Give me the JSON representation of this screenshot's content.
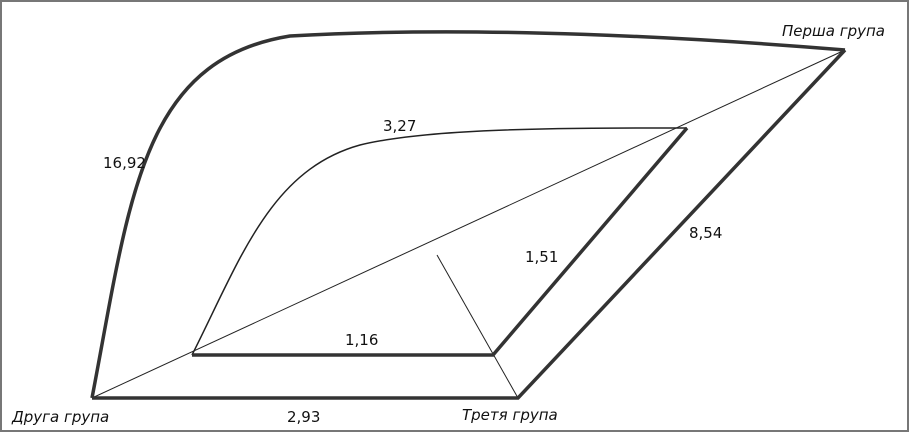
{
  "nodes": [
    {
      "label": "Перша група"
    },
    {
      "label": "Друга група"
    },
    {
      "label": "Третя група"
    }
  ],
  "edges": [
    {
      "label": "16,92"
    },
    {
      "label": "3,27"
    },
    {
      "label": "8,54"
    },
    {
      "label": "1,51"
    },
    {
      "label": "1,16"
    },
    {
      "label": "2,93"
    }
  ]
}
